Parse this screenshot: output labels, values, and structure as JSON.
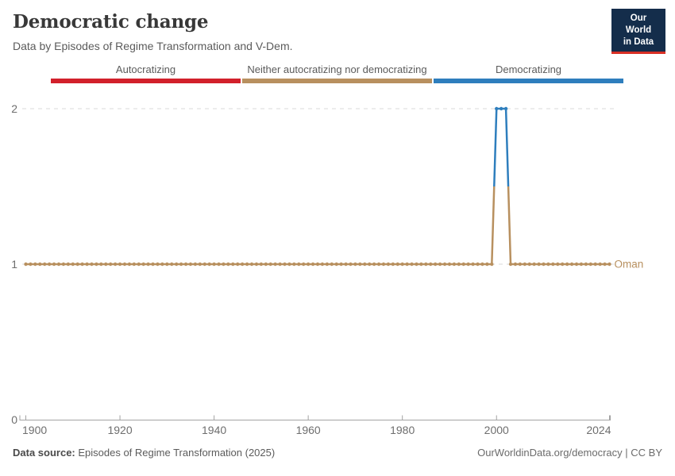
{
  "chart_data": {
    "type": "line",
    "title": "Democratic change",
    "subtitle": "Data by Episodes of Regime Transformation and V-Dem.",
    "xlabel": "",
    "ylabel": "",
    "xlim": [
      1900,
      2024
    ],
    "ylim": [
      0,
      2
    ],
    "x_ticks": [
      1900,
      1920,
      1940,
      1960,
      1980,
      2000,
      2024
    ],
    "y_ticks": [
      0,
      1,
      2
    ],
    "grid": "dashed horizontal gridlines at y ticks",
    "legend_position": "top",
    "legend": {
      "entries": [
        {
          "label": "Autocratizing",
          "value": 0,
          "color": "#d2202b"
        },
        {
          "label": "Neither autocratizing nor democratizing",
          "value": 1,
          "color": "#b8905f"
        },
        {
          "label": "Democratizing",
          "value": 2,
          "color": "#2e7ebd"
        }
      ]
    },
    "value_colors": {
      "0": "#d2202b",
      "1": "#b8905f",
      "2": "#2e7ebd"
    },
    "series": [
      {
        "name": "Oman",
        "label_color": "#b8905f",
        "points_every_year": true,
        "segments": [
          {
            "start_year": 1900,
            "end_year": 1999,
            "value": 1
          },
          {
            "start_year": 2000,
            "end_year": 2002,
            "value": 2
          },
          {
            "start_year": 2003,
            "end_year": 2024,
            "value": 1
          }
        ]
      }
    ],
    "axis_color": "#a3a3a3",
    "gridline_color": "#dadada",
    "tick_label_color": "#6e6e6e"
  },
  "branding": {
    "logo_line1": "Our World",
    "logo_line2": "in Data",
    "logo_bg": "#142d4b",
    "logo_accent": "#d93025"
  },
  "footer": {
    "source_label": "Data source:",
    "source_text": " Episodes of Regime Transformation (2025)",
    "credit": "OurWorldinData.org/democracy | CC BY"
  }
}
